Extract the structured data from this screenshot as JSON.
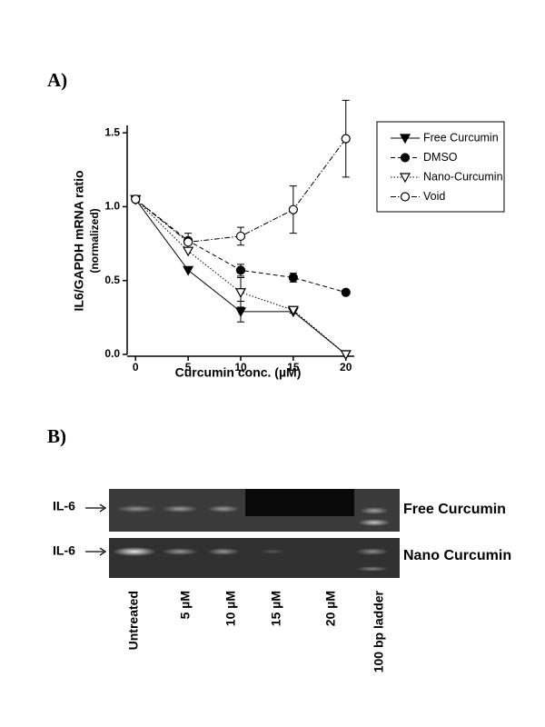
{
  "panels": {
    "a": "A)",
    "b": "B)"
  },
  "chart_data": {
    "type": "line",
    "xlabel": "Curcumin conc. (µM)",
    "ylabel": [
      "IL6/GAPDH mRNA ratio",
      "(normalized)"
    ],
    "x": [
      0,
      5,
      10,
      15,
      20
    ],
    "xlim": [
      -0.8,
      20.8
    ],
    "xticks": [
      0,
      5,
      10,
      15,
      20
    ],
    "ylim": [
      0,
      1.55
    ],
    "yticks": [
      {
        "value": 0,
        "label": "0.0"
      },
      0.5,
      {
        "value": 1,
        "label": "1.0"
      },
      1.5
    ],
    "legend": "outside-right",
    "series": [
      {
        "name": "Free Curcumin",
        "color": "#000000",
        "marker": "triangle-down-filled",
        "linestyle": "solid",
        "values": [
          1.05,
          0.57,
          0.29,
          0.29,
          0.0
        ],
        "errors": [
          null,
          null,
          0.07,
          null,
          null
        ]
      },
      {
        "name": "DMSO",
        "color": "#000000",
        "marker": "circle-filled",
        "linestyle": "dashed",
        "values": [
          1.05,
          0.77,
          0.57,
          0.52,
          0.42
        ],
        "errors": [
          null,
          0.05,
          0.04,
          0.03,
          null
        ]
      },
      {
        "name": "Nano-Curcumin",
        "color": "#000000",
        "marker": "triangle-down-open",
        "linestyle": "dotted",
        "values": [
          1.05,
          0.7,
          0.42,
          0.3,
          0.0
        ],
        "errors": [
          null,
          null,
          0.1,
          0.02,
          null
        ]
      },
      {
        "name": "Void",
        "color": "#000000",
        "marker": "circle-open",
        "linestyle": "dashdot",
        "values": [
          1.05,
          0.76,
          0.8,
          0.98,
          1.46
        ],
        "errors": [
          null,
          null,
          0.06,
          0.16,
          0.26
        ]
      }
    ]
  },
  "gel": {
    "band_label": "IL-6",
    "rows": [
      "Free Curcumin",
      "Nano Curcumin"
    ],
    "lanes": [
      "Untreated",
      "5 µM",
      "10 µM",
      "15 µM",
      "20 µM",
      "100 bp ladder"
    ]
  }
}
